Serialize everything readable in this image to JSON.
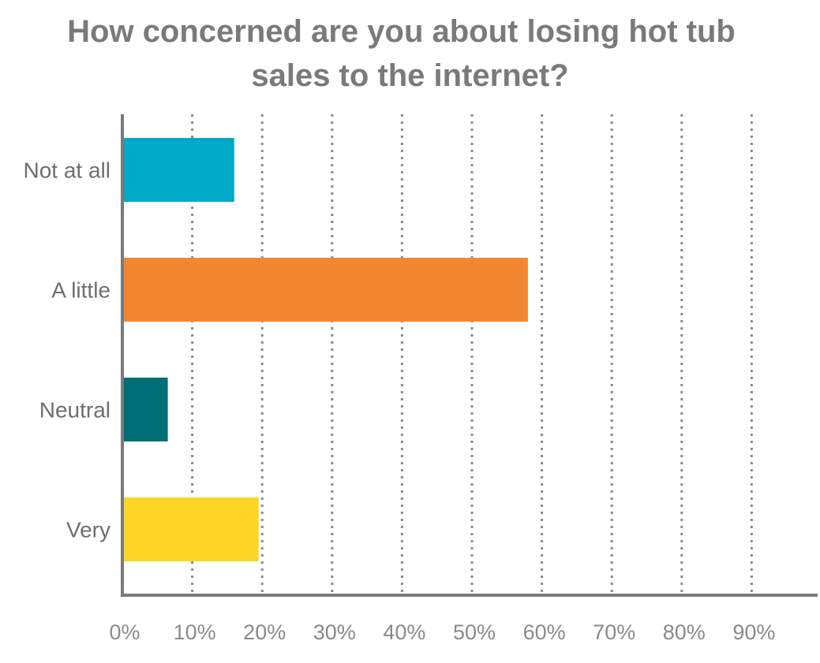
{
  "chart_data": {
    "type": "bar",
    "orientation": "horizontal",
    "title_lines": [
      "How concerned are you about losing hot tub",
      "sales to the internet?"
    ],
    "categories": [
      "Not at all",
      "A little",
      "Neutral",
      "Very"
    ],
    "values": [
      16,
      58,
      6.5,
      19.5
    ],
    "colors": [
      "#00a9c8",
      "#f38630",
      "#006e77",
      "#fdd524"
    ],
    "xlim": [
      0,
      100
    ],
    "x_ticks": [
      0,
      10,
      20,
      30,
      40,
      50,
      60,
      70,
      80,
      90
    ],
    "x_tick_labels": [
      "0%",
      "10%",
      "20%",
      "30%",
      "40%",
      "50%",
      "60%",
      "70%",
      "80%",
      "90%"
    ],
    "grid": "vertical-dotted",
    "legend": "none"
  }
}
